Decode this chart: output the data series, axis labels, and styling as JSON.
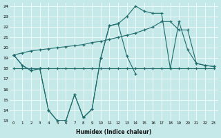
{
  "xlabel": "Humidex (Indice chaleur)",
  "bg_color": "#c5e8e8",
  "line_color": "#1f6b6b",
  "grid_color": "#b0d8d8",
  "xlim": [
    -0.5,
    23.5
  ],
  "ylim": [
    13,
    24.3
  ],
  "yticks": [
    13,
    14,
    15,
    16,
    17,
    18,
    19,
    20,
    21,
    22,
    23,
    24
  ],
  "xticks": [
    0,
    1,
    2,
    3,
    4,
    5,
    6,
    7,
    8,
    9,
    10,
    11,
    12,
    13,
    14,
    15,
    16,
    17,
    18,
    19,
    20,
    21,
    22,
    23
  ],
  "line1_x": [
    0,
    1,
    2,
    3,
    4,
    5,
    6,
    7,
    8,
    9,
    10,
    11,
    12,
    13,
    14
  ],
  "line1_y": [
    19.3,
    18.3,
    17.8,
    18.0,
    14.0,
    13.0,
    13.0,
    15.5,
    13.3,
    14.1,
    19.0,
    22.1,
    22.3,
    19.2,
    17.5
  ],
  "line2_x": [
    0,
    1,
    2,
    3,
    4,
    5,
    6,
    7,
    8,
    9,
    10,
    11,
    12,
    13,
    14,
    15,
    16,
    17,
    18,
    19,
    20,
    21,
    22,
    23
  ],
  "line2_y": [
    18.0,
    18.0,
    18.0,
    18.0,
    18.0,
    18.0,
    18.0,
    18.0,
    18.0,
    18.0,
    18.0,
    18.0,
    18.0,
    18.0,
    18.0,
    18.0,
    18.0,
    18.0,
    18.0,
    18.0,
    18.0,
    18.0,
    18.0,
    18.0
  ],
  "line3_x": [
    0,
    1,
    2,
    3,
    4,
    5,
    6,
    7,
    8,
    9,
    10,
    11,
    12,
    13,
    14,
    15,
    16,
    17,
    18,
    19,
    20,
    21,
    22,
    23
  ],
  "line3_y": [
    19.3,
    19.5,
    19.7,
    19.8,
    19.9,
    20.0,
    20.1,
    20.2,
    20.3,
    20.5,
    20.6,
    20.8,
    21.0,
    21.2,
    21.4,
    21.7,
    22.0,
    22.5,
    22.5,
    21.7,
    21.7,
    18.5,
    18.3,
    18.2
  ],
  "line4_x": [
    0,
    1,
    2,
    3,
    4,
    5,
    6,
    7,
    8,
    9,
    10,
    11,
    12,
    13,
    14,
    15,
    16,
    17,
    18,
    19,
    20,
    21,
    22,
    23
  ],
  "line4_y": [
    19.3,
    18.3,
    17.8,
    18.0,
    14.0,
    13.0,
    13.0,
    15.5,
    13.3,
    14.1,
    19.0,
    22.1,
    22.3,
    23.0,
    24.0,
    23.5,
    23.3,
    23.3,
    18.0,
    22.5,
    19.8,
    18.5,
    18.3,
    18.2
  ]
}
